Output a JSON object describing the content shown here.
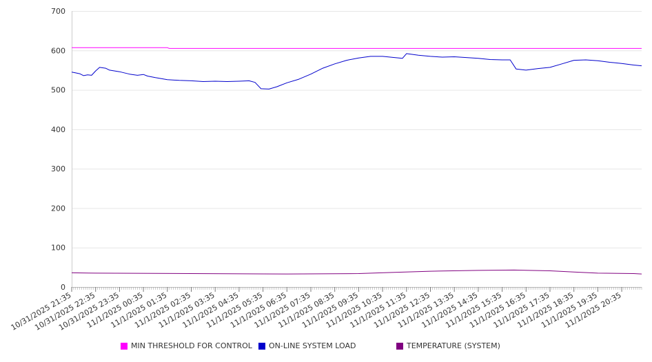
{
  "chart_data": {
    "type": "line",
    "title": "",
    "xlabel": "",
    "ylabel": "",
    "ylim": [
      0,
      700
    ],
    "yticks": [
      "0",
      "100",
      "200",
      "300",
      "400",
      "500",
      "600",
      "700"
    ],
    "grid": true,
    "legend_position": "bottom",
    "x_tick_labels": [
      "10/31/2025 21:35",
      "10/31/2025 22:35",
      "10/31/2025 23:35",
      "11/1/2025 00:35",
      "11/1/2025 01:35",
      "11/1/2025 02:35",
      "11/1/2025 03:35",
      "11/1/2025 04:35",
      "11/1/2025 05:35",
      "11/1/2025 06:35",
      "11/1/2025 07:35",
      "11/1/2025 08:35",
      "11/1/2025 09:35",
      "11/1/2025 10:35",
      "11/1/2025 11:35",
      "11/1/2025 12:35",
      "11/1/2025 13:35",
      "11/1/2025 14:35",
      "11/1/2025 15:35",
      "11/1/2025 16:35",
      "11/1/2025 17:35",
      "11/1/2025 18:35",
      "11/1/2025 19:35",
      "11/1/2025 20:35"
    ],
    "x_start": "10/31/2025 21:35",
    "x_end": "11/1/2025 21:25",
    "series": [
      {
        "name": "MIN THRESHOLD FOR CONTROL",
        "color": "#ff00ff",
        "points": [
          [
            "10/31/2025 21:35",
            607
          ],
          [
            "11/1/2025 01:35",
            607
          ],
          [
            "11/1/2025 01:40",
            605
          ],
          [
            "11/1/2025 21:25",
            605
          ]
        ]
      },
      {
        "name": "ON-LINE SYSTEM LOAD",
        "color": "#0000cc",
        "points": [
          [
            "10/31/2025 21:35",
            545
          ],
          [
            "10/31/2025 21:45",
            543
          ],
          [
            "10/31/2025 21:55",
            541
          ],
          [
            "10/31/2025 22:05",
            536
          ],
          [
            "10/31/2025 22:15",
            538
          ],
          [
            "10/31/2025 22:25",
            537
          ],
          [
            "10/31/2025 22:35",
            548
          ],
          [
            "10/31/2025 22:45",
            557
          ],
          [
            "10/31/2025 23:00",
            555
          ],
          [
            "10/31/2025 23:10",
            550
          ],
          [
            "10/31/2025 23:35",
            546
          ],
          [
            "11/1/2025 00:00",
            540
          ],
          [
            "11/1/2025 00:20",
            537
          ],
          [
            "11/1/2025 00:35",
            539
          ],
          [
            "11/1/2025 00:45",
            535
          ],
          [
            "11/1/2025 01:05",
            531
          ],
          [
            "11/1/2025 01:35",
            526
          ],
          [
            "11/1/2025 02:05",
            524
          ],
          [
            "11/1/2025 02:35",
            523
          ],
          [
            "11/1/2025 03:05",
            521
          ],
          [
            "11/1/2025 03:35",
            522
          ],
          [
            "11/1/2025 04:05",
            521
          ],
          [
            "11/1/2025 04:35",
            522
          ],
          [
            "11/1/2025 05:00",
            523
          ],
          [
            "11/1/2025 05:15",
            519
          ],
          [
            "11/1/2025 05:30",
            503
          ],
          [
            "11/1/2025 05:50",
            502
          ],
          [
            "11/1/2025 06:10",
            508
          ],
          [
            "11/1/2025 06:35",
            518
          ],
          [
            "11/1/2025 07:05",
            527
          ],
          [
            "11/1/2025 07:35",
            540
          ],
          [
            "11/1/2025 08:05",
            555
          ],
          [
            "11/1/2025 08:35",
            566
          ],
          [
            "11/1/2025 09:05",
            575
          ],
          [
            "11/1/2025 09:35",
            581
          ],
          [
            "11/1/2025 10:05",
            585
          ],
          [
            "11/1/2025 10:35",
            585
          ],
          [
            "11/1/2025 11:05",
            582
          ],
          [
            "11/1/2025 11:25",
            580
          ],
          [
            "11/1/2025 11:35",
            592
          ],
          [
            "11/1/2025 12:05",
            588
          ],
          [
            "11/1/2025 12:35",
            585
          ],
          [
            "11/1/2025 13:05",
            583
          ],
          [
            "11/1/2025 13:35",
            584
          ],
          [
            "11/1/2025 14:05",
            582
          ],
          [
            "11/1/2025 14:35",
            580
          ],
          [
            "11/1/2025 15:05",
            577
          ],
          [
            "11/1/2025 15:35",
            576
          ],
          [
            "11/1/2025 15:55",
            576
          ],
          [
            "11/1/2025 16:10",
            553
          ],
          [
            "11/1/2025 16:35",
            550
          ],
          [
            "11/1/2025 17:05",
            554
          ],
          [
            "11/1/2025 17:35",
            557
          ],
          [
            "11/1/2025 18:05",
            566
          ],
          [
            "11/1/2025 18:35",
            575
          ],
          [
            "11/1/2025 19:05",
            576
          ],
          [
            "11/1/2025 19:35",
            574
          ],
          [
            "11/1/2025 20:05",
            570
          ],
          [
            "11/1/2025 20:35",
            567
          ],
          [
            "11/1/2025 21:05",
            563
          ],
          [
            "11/1/2025 21:25",
            561
          ]
        ]
      },
      {
        "name": "TEMPERATURE (SYSTEM)",
        "color": "#800080",
        "points": [
          [
            "10/31/2025 21:35",
            36
          ],
          [
            "10/31/2025 22:35",
            35
          ],
          [
            "11/1/2025 02:35",
            34
          ],
          [
            "11/1/2025 06:35",
            33
          ],
          [
            "11/1/2025 09:35",
            34
          ],
          [
            "11/1/2025 11:05",
            37
          ],
          [
            "11/1/2025 12:35",
            40
          ],
          [
            "11/1/2025 14:35",
            42
          ],
          [
            "11/1/2025 16:05",
            43
          ],
          [
            "11/1/2025 17:35",
            41
          ],
          [
            "11/1/2025 18:35",
            38
          ],
          [
            "11/1/2025 19:35",
            35
          ],
          [
            "11/1/2025 21:05",
            34
          ],
          [
            "11/1/2025 21:25",
            33
          ]
        ]
      }
    ]
  },
  "legend": {
    "items": [
      {
        "label": "MIN THRESHOLD FOR CONTROL",
        "color": "#ff00ff"
      },
      {
        "label": "ON-LINE SYSTEM LOAD",
        "color": "#0000cc"
      },
      {
        "label": "TEMPERATURE (SYSTEM)",
        "color": "#800080"
      }
    ]
  }
}
